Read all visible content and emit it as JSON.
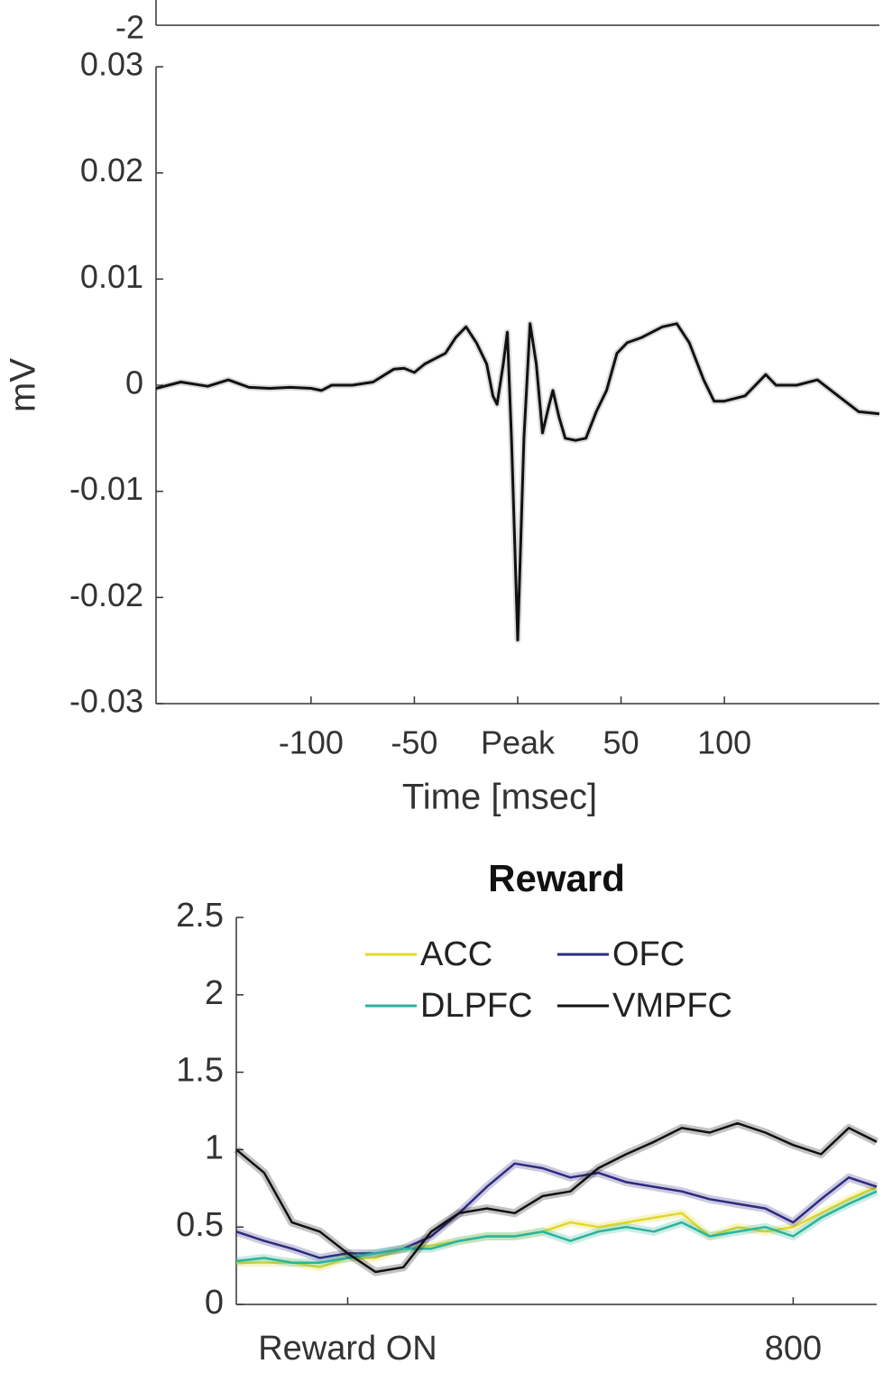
{
  "chart_data": [
    {
      "type": "axis-fragment",
      "yticks": [
        -2
      ]
    },
    {
      "type": "line",
      "ylabel": "mV",
      "xlabel": "Time [msec]",
      "xlim": [
        -175,
        175
      ],
      "ylim": [
        -0.03,
        0.03
      ],
      "xticks": [
        -100,
        -50,
        {
          "value": 0,
          "label": "Peak"
        },
        50,
        100
      ],
      "yticks": [
        0.03,
        0.02,
        0.01,
        0,
        -0.01,
        -0.02,
        -0.03
      ],
      "x": [
        -175,
        -163,
        -150,
        -140,
        -130,
        -120,
        -110,
        -100,
        -95,
        -90,
        -80,
        -70,
        -60,
        -55,
        -50,
        -45,
        -40,
        -35,
        -30,
        -25,
        -20,
        -15,
        -12,
        -10,
        -7,
        -5,
        -3,
        0,
        3,
        6,
        9,
        12,
        15,
        17,
        20,
        23,
        28,
        33,
        38,
        43,
        48,
        53,
        60,
        70,
        77,
        83,
        90,
        95,
        100,
        110,
        120,
        125,
        135,
        145,
        155,
        165,
        175
      ],
      "series": [
        {
          "color": "#111111",
          "values": [
            -0.0003,
            0.0003,
            -0.0001,
            0.0005,
            -0.0002,
            -0.0003,
            -0.0002,
            -0.0003,
            -0.0005,
            0,
            0,
            0.0003,
            0.0015,
            0.0016,
            0.0012,
            0.002,
            0.0025,
            0.003,
            0.0045,
            0.0055,
            0.004,
            0.002,
            -0.001,
            -0.0018,
            0.002,
            0.005,
            -0.005,
            -0.024,
            -0.005,
            0.0058,
            0.002,
            -0.0045,
            -0.002,
            -0.0005,
            -0.003,
            -0.005,
            -0.0052,
            -0.005,
            -0.0025,
            -0.0005,
            0.003,
            0.004,
            0.0045,
            0.0055,
            0.0058,
            0.004,
            0.0005,
            -0.0015,
            -0.0015,
            -0.001,
            0.001,
            0,
            0,
            0.0005,
            -0.001,
            -0.0025,
            -0.0027
          ]
        }
      ]
    },
    {
      "type": "line",
      "title": "Reward",
      "xlim": [
        -200,
        950
      ],
      "ylim": [
        0,
        2.5
      ],
      "xticks": [
        {
          "value": 0,
          "label": "Reward ON"
        },
        800
      ],
      "yticks": [
        0,
        0.5,
        1,
        1.5,
        2,
        2.5
      ],
      "x": [
        -200,
        -150,
        -100,
        -50,
        0,
        50,
        100,
        150,
        200,
        250,
        300,
        350,
        400,
        450,
        500,
        550,
        600,
        650,
        700,
        750,
        800,
        850,
        900,
        950
      ],
      "series": [
        {
          "name": "ACC",
          "color": "#e0d82a",
          "values": [
            0.27,
            0.27,
            0.27,
            0.24,
            0.3,
            0.3,
            0.36,
            0.38,
            0.41,
            0.44,
            0.44,
            0.47,
            0.53,
            0.5,
            0.53,
            0.56,
            0.59,
            0.44,
            0.5,
            0.47,
            0.5,
            0.59,
            0.68,
            0.76
          ]
        },
        {
          "name": "OFC",
          "color": "#2e2a80",
          "values": [
            0.47,
            0.41,
            0.36,
            0.3,
            0.33,
            0.33,
            0.36,
            0.44,
            0.59,
            0.76,
            0.91,
            0.88,
            0.82,
            0.85,
            0.79,
            0.76,
            0.73,
            0.68,
            0.65,
            0.62,
            0.53,
            0.68,
            0.82,
            0.76
          ]
        },
        {
          "name": "DLPFC",
          "color": "#2bb39c",
          "values": [
            0.28,
            0.3,
            0.27,
            0.27,
            0.3,
            0.33,
            0.36,
            0.36,
            0.41,
            0.44,
            0.44,
            0.47,
            0.41,
            0.47,
            0.5,
            0.47,
            0.53,
            0.44,
            0.47,
            0.5,
            0.44,
            0.56,
            0.65,
            0.73
          ]
        },
        {
          "name": "VMPFC",
          "color": "#111111",
          "values": [
            1.0,
            0.85,
            0.53,
            0.47,
            0.33,
            0.21,
            0.24,
            0.47,
            0.59,
            0.62,
            0.59,
            0.7,
            0.73,
            0.88,
            0.97,
            1.05,
            1.14,
            1.11,
            1.17,
            1.11,
            1.03,
            0.97,
            1.14,
            1.05
          ]
        }
      ]
    }
  ]
}
